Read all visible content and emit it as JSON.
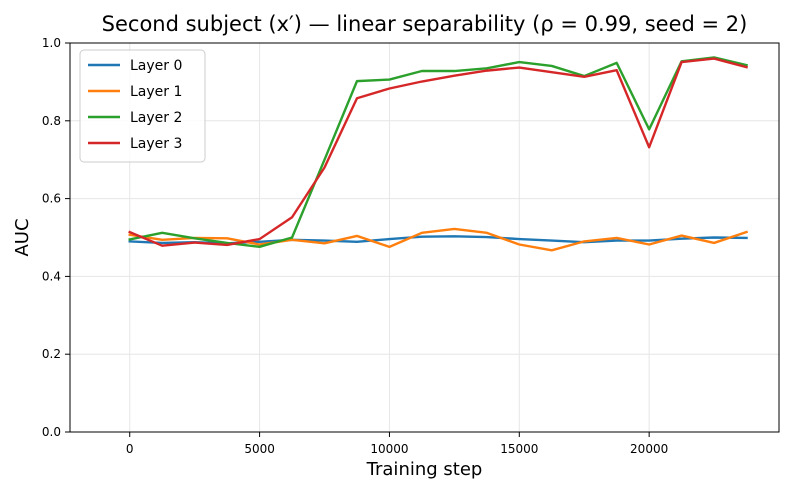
{
  "chart_data": {
    "type": "line",
    "title": "Second subject (x′) — linear separability  (ρ = 0.99, seed = 2)",
    "xlabel": "Training step",
    "ylabel": "AUC",
    "xlim": [
      -2300,
      25000
    ],
    "ylim": [
      0.0,
      1.0
    ],
    "xticks": [
      0,
      5000,
      10000,
      15000,
      20000
    ],
    "yticks": [
      0.0,
      0.2,
      0.4,
      0.6,
      0.8,
      1.0
    ],
    "xtick_labels": [
      "0",
      "5000",
      "10000",
      "15000",
      "20000"
    ],
    "ytick_labels": [
      "0.0",
      "0.2",
      "0.4",
      "0.6",
      "0.8",
      "1.0"
    ],
    "grid": true,
    "legend_position": "top-left",
    "x": [
      0,
      1250,
      2500,
      3750,
      5000,
      6250,
      7500,
      8750,
      10000,
      11250,
      12500,
      13750,
      15000,
      16250,
      17500,
      18750,
      20000,
      21250,
      22500,
      23750
    ],
    "series": [
      {
        "name": "Layer 0",
        "color": "#1f77b4",
        "values": [
          0.49,
          0.486,
          0.488,
          0.485,
          0.489,
          0.494,
          0.492,
          0.489,
          0.496,
          0.502,
          0.503,
          0.501,
          0.496,
          0.492,
          0.488,
          0.492,
          0.492,
          0.497,
          0.5,
          0.499
        ]
      },
      {
        "name": "Layer 1",
        "color": "#ff7f0e",
        "values": [
          0.507,
          0.494,
          0.499,
          0.498,
          0.482,
          0.494,
          0.485,
          0.504,
          0.476,
          0.512,
          0.522,
          0.512,
          0.482,
          0.467,
          0.49,
          0.499,
          0.482,
          0.505,
          0.486,
          0.514
        ]
      },
      {
        "name": "Layer 2",
        "color": "#2ca02c",
        "values": [
          0.495,
          0.512,
          0.498,
          0.486,
          0.476,
          0.5,
          0.7,
          0.902,
          0.906,
          0.928,
          0.928,
          0.935,
          0.951,
          0.941,
          0.915,
          0.949,
          0.778,
          0.953,
          0.963,
          0.943
        ]
      },
      {
        "name": "Layer 3",
        "color": "#d62728",
        "values": [
          0.514,
          0.479,
          0.487,
          0.481,
          0.496,
          0.552,
          0.68,
          0.858,
          0.883,
          0.901,
          0.916,
          0.929,
          0.937,
          0.925,
          0.913,
          0.93,
          0.732,
          0.951,
          0.96,
          0.938
        ]
      }
    ]
  }
}
